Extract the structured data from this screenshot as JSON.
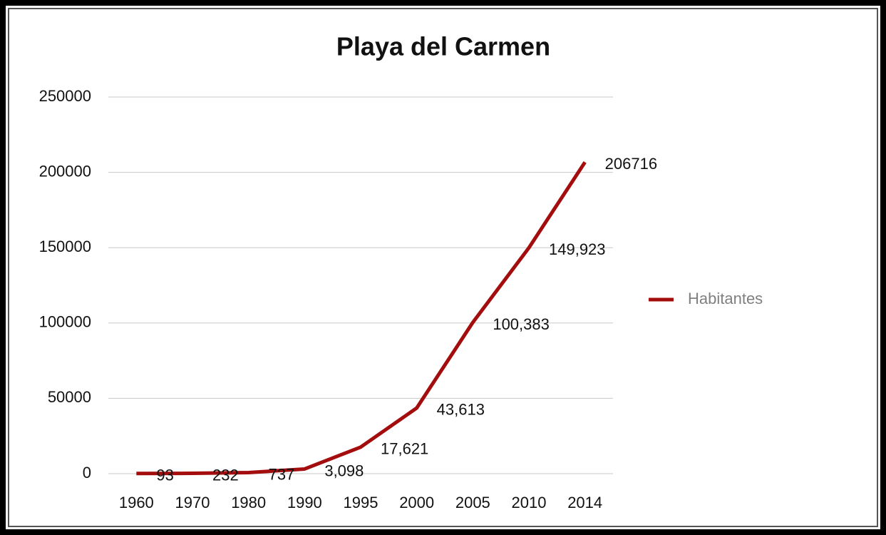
{
  "chart_data": {
    "type": "line",
    "title": "Playa del Carmen",
    "categories": [
      "1960",
      "1970",
      "1980",
      "1990",
      "1995",
      "2000",
      "2005",
      "2010",
      "2014"
    ],
    "series": [
      {
        "name": "Habitantes",
        "color": "#a30d0d",
        "values": [
          93,
          232,
          737,
          3098,
          17621,
          43613,
          100383,
          149923,
          206716
        ],
        "value_labels": [
          "93",
          "232",
          "737",
          "3,098",
          "17,621",
          "43,613",
          "100,383",
          "149,923",
          "206716"
        ]
      }
    ],
    "ylim": [
      0,
      250000
    ],
    "yticks": [
      0,
      50000,
      100000,
      150000,
      200000,
      250000
    ],
    "grid": true,
    "legend": "right"
  }
}
